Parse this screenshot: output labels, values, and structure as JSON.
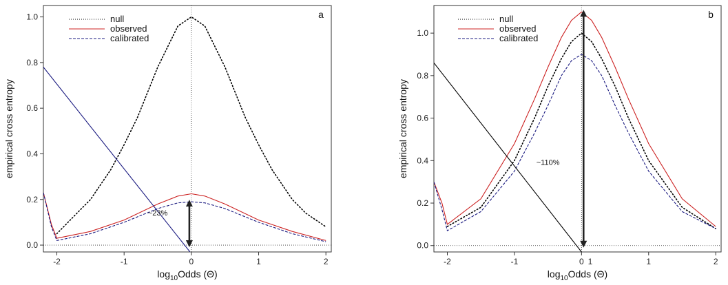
{
  "chart_data": [
    {
      "type": "line",
      "panel_label": "a",
      "xlabel_main": "log",
      "xlabel_sub": "10",
      "xlabel_rest": "Odds (Θ)",
      "ylabel": "empirical cross entropy",
      "xlim": [
        -2.2,
        2.08
      ],
      "ylim": [
        -0.03,
        1.05
      ],
      "xticks": [
        -2,
        -1,
        0,
        1,
        2
      ],
      "xtick_labels": [
        "-2",
        "-1",
        "0",
        "1",
        "2"
      ],
      "yticks": [
        0.0,
        0.2,
        0.4,
        0.6,
        0.8,
        1.0
      ],
      "ytick_labels": [
        "0.0",
        "0.2",
        "0.4",
        "0.6",
        "0.8",
        "1.0"
      ],
      "legend": [
        {
          "label": "null",
          "style": "dotted",
          "color": "#000000"
        },
        {
          "label": "observed",
          "style": "solid",
          "color": "#cc2222"
        },
        {
          "label": "calibrated",
          "style": "dashed",
          "color": "#1a1a80"
        }
      ],
      "legend_placement": "top-center",
      "series": [
        {
          "name": "null",
          "style": "dotted",
          "color": "#000000",
          "x": [
            -2.0,
            -1.7,
            -1.5,
            -1.2,
            -1.0,
            -0.8,
            -0.5,
            -0.2,
            0.0,
            0.2,
            0.5,
            0.8,
            1.0,
            1.2,
            1.5,
            1.7,
            2.0
          ],
          "y": [
            0.05,
            0.14,
            0.2,
            0.33,
            0.44,
            0.56,
            0.78,
            0.96,
            1.0,
            0.96,
            0.78,
            0.56,
            0.44,
            0.33,
            0.2,
            0.14,
            0.08
          ]
        },
        {
          "name": "observed",
          "style": "solid",
          "color": "#cc2222",
          "x": [
            -2.2,
            -2.08,
            -2.0,
            -1.5,
            -1.0,
            -0.5,
            -0.2,
            0.0,
            0.2,
            0.5,
            1.0,
            1.5,
            2.0
          ],
          "y": [
            0.23,
            0.09,
            0.03,
            0.06,
            0.11,
            0.18,
            0.215,
            0.225,
            0.215,
            0.18,
            0.11,
            0.06,
            0.02
          ]
        },
        {
          "name": "calibrated",
          "style": "dashed",
          "color": "#1a1a80",
          "x": [
            -2.2,
            -2.08,
            -2.0,
            -1.5,
            -1.0,
            -0.5,
            -0.2,
            0.0,
            0.2,
            0.5,
            1.0,
            1.5,
            2.0
          ],
          "y": [
            0.23,
            0.08,
            0.02,
            0.05,
            0.1,
            0.16,
            0.185,
            0.19,
            0.185,
            0.16,
            0.1,
            0.05,
            0.015
          ]
        },
        {
          "name": "",
          "style": "solid",
          "color": "#1a1a80",
          "x": [
            -2.2,
            -0.02
          ],
          "y": [
            0.78,
            -0.03
          ]
        }
      ],
      "vline_x": 0.0,
      "hline_y": 0.0,
      "arrow": {
        "x": -0.03,
        "y_from": 0.0,
        "y_to": 0.19
      },
      "annotation": {
        "text": "~23%",
        "x": -0.5,
        "y": 0.13
      }
    },
    {
      "type": "line",
      "panel_label": "b",
      "xlabel_main": "log",
      "xlabel_sub": "10",
      "xlabel_rest": "Odds (Θ)",
      "ylabel": "empirical cross entropy",
      "xlim": [
        -2.2,
        2.08
      ],
      "ylim": [
        -0.03,
        1.13
      ],
      "xticks": [
        -2,
        -1,
        0,
        1,
        2
      ],
      "xtick_labels": [
        "-2",
        "-1",
        "0",
        "1",
        "2"
      ],
      "yticks": [
        0.0,
        0.2,
        0.4,
        0.6,
        0.8,
        1.0
      ],
      "ytick_labels": [
        "0.0",
        "0.2",
        "0.4",
        "0.6",
        "0.8",
        "1.0"
      ],
      "legend": [
        {
          "label": "null",
          "style": "dotted",
          "color": "#000000"
        },
        {
          "label": "observed",
          "style": "solid",
          "color": "#cc2222"
        },
        {
          "label": "calibrated",
          "style": "dashed",
          "color": "#1a1a80"
        }
      ],
      "legend_placement": "top-right",
      "series": [
        {
          "name": "null",
          "style": "dotted",
          "color": "#000000",
          "x": [
            -2.0,
            -1.5,
            -1.0,
            -0.7,
            -0.5,
            -0.3,
            -0.15,
            0.0,
            0.15,
            0.3,
            0.5,
            0.7,
            1.0,
            1.5,
            2.0
          ],
          "y": [
            0.09,
            0.18,
            0.4,
            0.6,
            0.75,
            0.88,
            0.96,
            1.0,
            0.96,
            0.88,
            0.75,
            0.6,
            0.4,
            0.18,
            0.08
          ]
        },
        {
          "name": "observed",
          "style": "solid",
          "color": "#cc2222",
          "x": [
            -2.2,
            -2.08,
            -2.0,
            -1.5,
            -1.0,
            -0.7,
            -0.5,
            -0.3,
            -0.15,
            0.0,
            0.15,
            0.3,
            0.5,
            0.7,
            1.0,
            1.5,
            2.0
          ],
          "y": [
            0.3,
            0.2,
            0.1,
            0.22,
            0.48,
            0.69,
            0.84,
            0.98,
            1.06,
            1.1,
            1.06,
            0.98,
            0.84,
            0.69,
            0.48,
            0.22,
            0.09
          ]
        },
        {
          "name": "calibrated",
          "style": "dashed",
          "color": "#1a1a80",
          "x": [
            -2.2,
            -2.08,
            -2.0,
            -1.5,
            -1.0,
            -0.7,
            -0.5,
            -0.3,
            -0.15,
            0.0,
            0.15,
            0.3,
            0.5,
            0.7,
            1.0,
            1.5,
            2.0
          ],
          "y": [
            0.3,
            0.17,
            0.07,
            0.16,
            0.35,
            0.53,
            0.66,
            0.8,
            0.87,
            0.9,
            0.87,
            0.8,
            0.66,
            0.53,
            0.35,
            0.16,
            0.08
          ]
        },
        {
          "name": "",
          "style": "solid",
          "color": "#000000",
          "x": [
            -2.2,
            0.0
          ],
          "y": [
            0.86,
            -0.03
          ]
        }
      ],
      "vline_x": 0.0,
      "hline_y": 0.0,
      "arrow": {
        "x": 0.03,
        "y_from": 0.0,
        "y_to": 1.1
      },
      "annotation": {
        "text": "~110%",
        "x": -0.5,
        "y": 0.38
      },
      "extra_tick_label": {
        "text": "1",
        "x": 0.13
      }
    }
  ]
}
